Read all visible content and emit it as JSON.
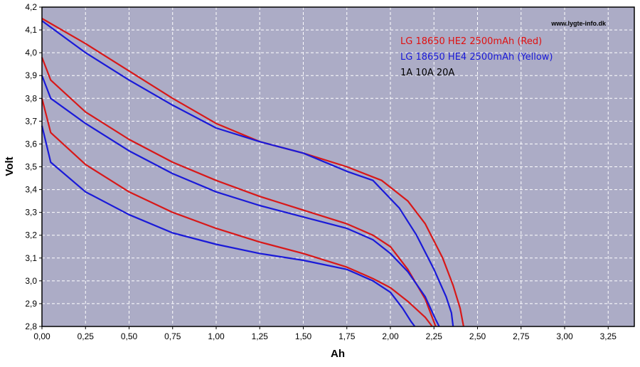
{
  "chart_data": {
    "type": "line",
    "title": "",
    "xlabel": "Ah",
    "ylabel": "Volt",
    "xlim": [
      0,
      3.4
    ],
    "ylim": [
      2.8,
      4.2
    ],
    "grid": true,
    "legend_placement": "top-right",
    "watermark": "www.lygte-info.dk",
    "x_ticks": [
      "0,00",
      "0,25",
      "0,50",
      "0,75",
      "1,00",
      "1,25",
      "1,50",
      "1,75",
      "2,00",
      "2,25",
      "2,50",
      "2,75",
      "3,00",
      "3,25"
    ],
    "y_ticks": [
      "2,8",
      "2,9",
      "3,0",
      "3,1",
      "3,2",
      "3,3",
      "3,4",
      "3,5",
      "3,6",
      "3,7",
      "3,8",
      "3,9",
      "4,0",
      "4,1",
      "4,2"
    ],
    "legend": [
      {
        "text": "LG 18650 HE2 2500mAh (Red)",
        "color": "#e01010"
      },
      {
        "text": "LG 18650 HE4 2500mAh (Yellow)",
        "color": "#1a1ad8"
      },
      {
        "text": "1A 10A 20A",
        "color": "#000000"
      }
    ],
    "series": [
      {
        "color": "#d81818",
        "values": [
          [
            0,
            4.15
          ],
          [
            0.25,
            4.04
          ],
          [
            0.5,
            3.92
          ],
          [
            0.75,
            3.8
          ],
          [
            1.0,
            3.69
          ],
          [
            1.25,
            3.61
          ],
          [
            1.5,
            3.56
          ],
          [
            1.75,
            3.5
          ],
          [
            1.95,
            3.44
          ],
          [
            2.1,
            3.35
          ],
          [
            2.2,
            3.25
          ],
          [
            2.3,
            3.1
          ],
          [
            2.36,
            2.98
          ],
          [
            2.4,
            2.88
          ],
          [
            2.42,
            2.8
          ]
        ]
      },
      {
        "color": "#d81818",
        "values": [
          [
            0,
            3.98
          ],
          [
            0.05,
            3.88
          ],
          [
            0.25,
            3.74
          ],
          [
            0.5,
            3.62
          ],
          [
            0.75,
            3.52
          ],
          [
            1.0,
            3.44
          ],
          [
            1.25,
            3.37
          ],
          [
            1.5,
            3.31
          ],
          [
            1.75,
            3.25
          ],
          [
            1.9,
            3.2
          ],
          [
            2.0,
            3.15
          ],
          [
            2.1,
            3.05
          ],
          [
            2.2,
            2.92
          ],
          [
            2.26,
            2.8
          ]
        ]
      },
      {
        "color": "#d81818",
        "values": [
          [
            0,
            3.8
          ],
          [
            0.05,
            3.65
          ],
          [
            0.25,
            3.51
          ],
          [
            0.5,
            3.39
          ],
          [
            0.75,
            3.3
          ],
          [
            1.0,
            3.23
          ],
          [
            1.25,
            3.17
          ],
          [
            1.5,
            3.12
          ],
          [
            1.75,
            3.06
          ],
          [
            1.9,
            3.01
          ],
          [
            2.0,
            2.97
          ],
          [
            2.1,
            2.91
          ],
          [
            2.2,
            2.84
          ],
          [
            2.24,
            2.8
          ]
        ]
      },
      {
        "color": "#1a1ad8",
        "values": [
          [
            0,
            4.14
          ],
          [
            0.25,
            4.0
          ],
          [
            0.5,
            3.88
          ],
          [
            0.75,
            3.77
          ],
          [
            1.0,
            3.67
          ],
          [
            1.25,
            3.61
          ],
          [
            1.5,
            3.56
          ],
          [
            1.75,
            3.48
          ],
          [
            1.9,
            3.44
          ],
          [
            2.05,
            3.32
          ],
          [
            2.15,
            3.2
          ],
          [
            2.25,
            3.05
          ],
          [
            2.32,
            2.93
          ],
          [
            2.35,
            2.86
          ],
          [
            2.36,
            2.8
          ]
        ]
      },
      {
        "color": "#1a1ad8",
        "values": [
          [
            0,
            3.9
          ],
          [
            0.05,
            3.8
          ],
          [
            0.25,
            3.69
          ],
          [
            0.5,
            3.57
          ],
          [
            0.75,
            3.47
          ],
          [
            1.0,
            3.39
          ],
          [
            1.25,
            3.33
          ],
          [
            1.5,
            3.28
          ],
          [
            1.75,
            3.23
          ],
          [
            1.9,
            3.18
          ],
          [
            2.0,
            3.12
          ],
          [
            2.1,
            3.04
          ],
          [
            2.2,
            2.93
          ],
          [
            2.26,
            2.83
          ],
          [
            2.28,
            2.8
          ]
        ]
      },
      {
        "color": "#1a1ad8",
        "values": [
          [
            0,
            3.68
          ],
          [
            0.05,
            3.52
          ],
          [
            0.25,
            3.39
          ],
          [
            0.5,
            3.29
          ],
          [
            0.75,
            3.21
          ],
          [
            1.0,
            3.16
          ],
          [
            1.25,
            3.12
          ],
          [
            1.5,
            3.09
          ],
          [
            1.75,
            3.05
          ],
          [
            1.9,
            3.0
          ],
          [
            2.0,
            2.95
          ],
          [
            2.07,
            2.88
          ],
          [
            2.12,
            2.82
          ],
          [
            2.14,
            2.8
          ]
        ]
      }
    ]
  }
}
